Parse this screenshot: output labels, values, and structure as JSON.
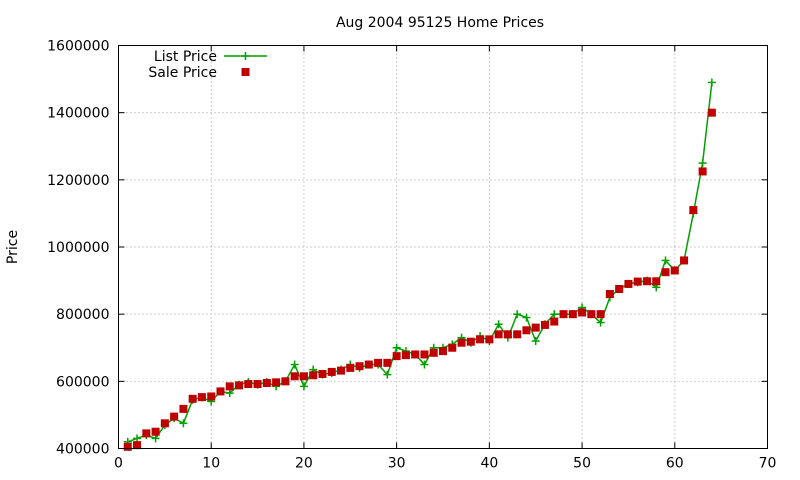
{
  "chart_data": {
    "type": "line",
    "title": "Aug 2004 95125 Home Prices",
    "xlabel": "",
    "ylabel": "Price",
    "xlim": [
      0,
      70
    ],
    "ylim": [
      400000,
      1600000
    ],
    "xticks": [
      "0",
      "10",
      "20",
      "30",
      "40",
      "50",
      "60",
      "70"
    ],
    "yticks": [
      "400000",
      "600000",
      "800000",
      "1000000",
      "1200000",
      "1400000",
      "1600000"
    ],
    "grid": true,
    "legend_position": "top-left",
    "series": [
      {
        "name": "List Price",
        "color": "#00a000",
        "marker": "plus",
        "style": "line",
        "values": [
          [
            1,
            420000
          ],
          [
            2,
            430000
          ],
          [
            3,
            440000
          ],
          [
            4,
            430000
          ],
          [
            5,
            470000
          ],
          [
            6,
            490000
          ],
          [
            7,
            475000
          ],
          [
            8,
            545000
          ],
          [
            9,
            552000
          ],
          [
            10,
            540000
          ],
          [
            11,
            570000
          ],
          [
            12,
            565000
          ],
          [
            13,
            590000
          ],
          [
            14,
            598000
          ],
          [
            15,
            590000
          ],
          [
            16,
            598000
          ],
          [
            17,
            585000
          ],
          [
            18,
            600000
          ],
          [
            19,
            650000
          ],
          [
            20,
            585000
          ],
          [
            21,
            635000
          ],
          [
            22,
            620000
          ],
          [
            23,
            625000
          ],
          [
            24,
            635000
          ],
          [
            25,
            650000
          ],
          [
            26,
            640000
          ],
          [
            27,
            650000
          ],
          [
            28,
            650000
          ],
          [
            29,
            620000
          ],
          [
            30,
            700000
          ],
          [
            31,
            690000
          ],
          [
            32,
            680000
          ],
          [
            33,
            650000
          ],
          [
            34,
            700000
          ],
          [
            35,
            700000
          ],
          [
            36,
            710000
          ],
          [
            37,
            730000
          ],
          [
            38,
            715000
          ],
          [
            39,
            735000
          ],
          [
            40,
            720000
          ],
          [
            41,
            770000
          ],
          [
            42,
            730000
          ],
          [
            43,
            800000
          ],
          [
            44,
            790000
          ],
          [
            45,
            720000
          ],
          [
            46,
            770000
          ],
          [
            47,
            800000
          ],
          [
            48,
            800000
          ],
          [
            49,
            800000
          ],
          [
            50,
            820000
          ],
          [
            51,
            800000
          ],
          [
            52,
            775000
          ],
          [
            53,
            850000
          ],
          [
            54,
            875000
          ],
          [
            55,
            890000
          ],
          [
            56,
            895000
          ],
          [
            57,
            900000
          ],
          [
            58,
            880000
          ],
          [
            59,
            960000
          ],
          [
            60,
            930000
          ],
          [
            61,
            960000
          ],
          [
            62,
            1100000
          ],
          [
            63,
            1250000
          ],
          [
            64,
            1490000
          ]
        ]
      },
      {
        "name": "Sale Price",
        "color": "#c00000",
        "marker": "square",
        "style": "points",
        "values": [
          [
            1,
            405000
          ],
          [
            2,
            410000
          ],
          [
            3,
            445000
          ],
          [
            4,
            450000
          ],
          [
            5,
            475000
          ],
          [
            6,
            495000
          ],
          [
            7,
            518000
          ],
          [
            8,
            548000
          ],
          [
            9,
            553000
          ],
          [
            10,
            555000
          ],
          [
            11,
            570000
          ],
          [
            12,
            585000
          ],
          [
            13,
            588000
          ],
          [
            14,
            592000
          ],
          [
            15,
            592000
          ],
          [
            16,
            595000
          ],
          [
            17,
            597000
          ],
          [
            18,
            600000
          ],
          [
            19,
            615000
          ],
          [
            20,
            615000
          ],
          [
            21,
            618000
          ],
          [
            22,
            622000
          ],
          [
            23,
            628000
          ],
          [
            24,
            632000
          ],
          [
            25,
            640000
          ],
          [
            26,
            645000
          ],
          [
            27,
            650000
          ],
          [
            28,
            655000
          ],
          [
            29,
            655000
          ],
          [
            30,
            675000
          ],
          [
            31,
            678000
          ],
          [
            32,
            680000
          ],
          [
            33,
            680000
          ],
          [
            34,
            685000
          ],
          [
            35,
            690000
          ],
          [
            36,
            700000
          ],
          [
            37,
            715000
          ],
          [
            38,
            718000
          ],
          [
            39,
            725000
          ],
          [
            40,
            725000
          ],
          [
            41,
            740000
          ],
          [
            42,
            740000
          ],
          [
            43,
            740000
          ],
          [
            44,
            752000
          ],
          [
            45,
            760000
          ],
          [
            46,
            768000
          ],
          [
            47,
            778000
          ],
          [
            48,
            800000
          ],
          [
            49,
            800000
          ],
          [
            50,
            805000
          ],
          [
            51,
            800000
          ],
          [
            52,
            800000
          ],
          [
            53,
            860000
          ],
          [
            54,
            875000
          ],
          [
            55,
            890000
          ],
          [
            56,
            897000
          ],
          [
            57,
            898000
          ],
          [
            58,
            898000
          ],
          [
            59,
            925000
          ],
          [
            60,
            930000
          ],
          [
            61,
            960000
          ],
          [
            62,
            1110000
          ],
          [
            63,
            1225000
          ],
          [
            64,
            1400000
          ]
        ]
      }
    ]
  }
}
